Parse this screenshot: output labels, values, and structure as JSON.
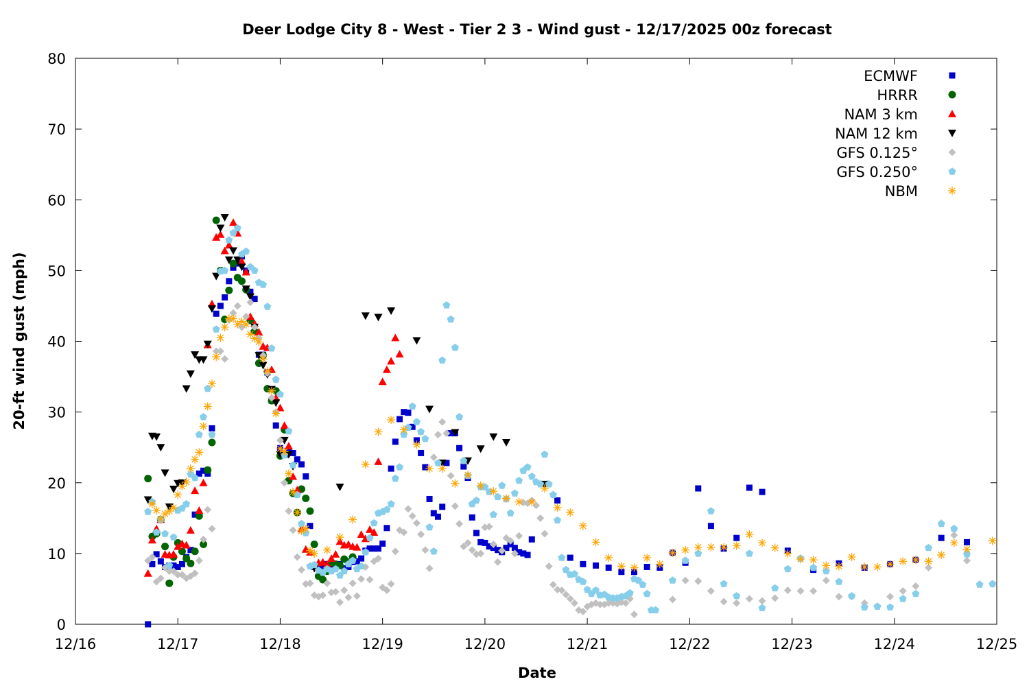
{
  "chart_data": {
    "type": "scatter",
    "title": "Deer Lodge City 8 - West - Tier 2 3 - Wind gust - 12/17/2025 00z forecast",
    "xlabel": "Date",
    "ylabel": "20-ft wind gust (mph)",
    "x_units": "hours since 12/16 00z",
    "xlim": [
      0,
      216
    ],
    "ylim": [
      0,
      80
    ],
    "x_ticks": [
      {
        "hour": 0,
        "label": "12/16"
      },
      {
        "hour": 24,
        "label": "12/17"
      },
      {
        "hour": 48,
        "label": "12/18"
      },
      {
        "hour": 72,
        "label": "12/19"
      },
      {
        "hour": 96,
        "label": "12/20"
      },
      {
        "hour": 120,
        "label": "12/21"
      },
      {
        "hour": 144,
        "label": "12/22"
      },
      {
        "hour": 168,
        "label": "12/23"
      },
      {
        "hour": 192,
        "label": "12/24"
      },
      {
        "hour": 216,
        "label": "12/25"
      }
    ],
    "y_ticks": [
      "0",
      "10",
      "20",
      "30",
      "40",
      "50",
      "60",
      "70",
      "80"
    ],
    "grid": false,
    "legend_position": "top-right",
    "series": [
      {
        "name": "ECMWF",
        "color": "#0000cc",
        "marker": "square",
        "segments": [
          {
            "start": 17,
            "step": 1,
            "values": [
              0,
              8.5,
              9.9,
              8.9,
              8.1,
              8.3,
              8.3,
              8.1,
              8.5,
              9.5,
              10.5,
              15.5,
              21.3,
              21.7,
              21.3,
              27.7,
              43.9,
              45,
              46.2,
              48.5,
              50.4,
              51,
              52,
              50,
              47,
              46,
              38.1,
              38.1,
              35.6,
              31.6,
              28.1,
              24.9,
              23.9,
              24.5,
              24.2,
              23.3,
              22.6,
              20.9,
              13.9,
              8.1,
              8.1,
              8.1,
              8.5,
              8.4,
              8.4,
              8.5,
              7.9,
              8.1,
              8.8,
              8.9,
              9.3,
              10.4,
              10.7,
              10.7,
              10.7,
              11.4,
              13.6,
              22,
              25.8,
              29,
              30,
              29.9,
              27.9,
              26,
              24.2,
              22.2,
              17.7,
              15.7,
              15.2,
              16.6,
              22.8,
              27,
              27,
              24.9,
              22.3,
              20.7,
              15.1,
              12.9,
              11.6,
              11.5,
              11,
              10.8,
              10.5,
              10.2,
              10.8,
              11.3,
              10.8,
              10.2,
              10,
              9.8,
              12
            ]
          },
          {
            "start": 110,
            "step": 3,
            "values": [
              19.8,
              17.5,
              9.4,
              8.5,
              8.3,
              8,
              7.4,
              7.4,
              8.1,
              8,
              10.1,
              8.7,
              19.2,
              13.9,
              10.7,
              12.2,
              19.3,
              18.7
            ]
          },
          {
            "start": 167,
            "step": 6,
            "values": [
              10.4,
              7.7,
              8.6,
              8,
              8.5,
              9.1,
              12.2,
              11.6
            ]
          }
        ]
      },
      {
        "name": "HRRR",
        "color": "#006400",
        "marker": "circle",
        "segments": [
          {
            "start": 17,
            "step": 1,
            "values": [
              20.6,
              12.4,
              12.8,
              14.8,
              11,
              5.8,
              9.5,
              11.5,
              10.3,
              9.3,
              8.6,
              10.3,
              15.3,
              11.3,
              21.8,
              25.7,
              57.1,
              50,
              43.1,
              47.2,
              51,
              49,
              48.5,
              47.3,
              43,
              41.4,
              36.9,
              38,
              33.3,
              31.6,
              33,
              23.8,
              27.5,
              20.3,
              18.5,
              15.8,
              19.1,
              17.8,
              16,
              11.3,
              6.8,
              6.3,
              7.5,
              8.7,
              8.5,
              8.3,
              9.2,
              8.8,
              9.5
            ]
          }
        ]
      },
      {
        "name": "NAM 3 km",
        "color": "#ff0000",
        "marker": "triangle-up",
        "segments": [
          {
            "start": 17,
            "step": 1,
            "values": [
              7.2,
              11.9,
              13.5,
              14.8,
              9.9,
              9.8,
              9.9,
              11,
              11.4,
              11.2,
              13.3,
              18.9,
              16.1,
              20,
              39.5,
              45.3,
              54.7,
              55.1,
              52.8,
              53.6,
              56.8,
              55.3,
              51.3,
              49.8,
              43.5,
              42.5,
              41.3,
              39.3,
              39.1,
              36,
              32,
              30.6,
              28.1,
              25.2,
              20.9,
              19,
              13.5,
              10.6,
              10.2,
              8.3,
              8.7,
              8.8,
              8.5,
              9.3,
              9.9,
              11.7,
              11.2,
              11.3,
              11,
              10.9,
              12.7,
              12.1,
              13.4,
              13,
              23,
              34.3,
              36,
              37.2,
              40.5,
              38.2
            ]
          }
        ]
      },
      {
        "name": "NAM 12 km",
        "color": "#000000",
        "marker": "triangle-down",
        "segments": [
          {
            "start": 17,
            "step": 1,
            "values": [
              17.6,
              26.6,
              26.5,
              25,
              21.4,
              16.6,
              19.1,
              19.9,
              20,
              33.3,
              35.4,
              38.1,
              37.4,
              37.4,
              39.6,
              44.6,
              49.2,
              56,
              57.5,
              51.5,
              52.8,
              51.5,
              50.5,
              47.4,
              46.3,
              42,
              38,
              36.6,
              35.3,
              33.2,
              31.3,
              24,
              26,
              24,
              22.3,
              null,
              null,
              null,
              null,
              7.9
            ]
          },
          {
            "start": 62,
            "step": 3,
            "values": [
              19.4,
              null,
              43.6,
              43.4,
              44.3,
              null,
              40.1,
              30.4,
              22.8,
              27.1,
              23.1,
              24.8,
              26.5,
              25.7,
              null,
              null,
              19.8
            ]
          }
        ]
      },
      {
        "name": "GFS 0.125°",
        "color": "#c0c0c0",
        "marker": "diamond",
        "segments": [
          {
            "start": 17,
            "step": 1,
            "values": [
              9,
              9.5,
              6,
              6.5,
              8,
              7.5,
              7.5,
              7,
              7,
              6.5,
              6.8,
              7.2,
              9,
              12,
              16.2,
              13.5,
              38.6,
              38.6,
              37.5,
              43,
              44,
              45,
              42,
              43.5,
              45.5,
              42,
              40.5,
              38,
              35.5,
              32,
              30,
              26,
              20,
              16,
              13.3,
              9.5,
              7.7,
              5.7,
              5.8,
              4.1,
              3.9,
              4.1,
              5.8,
              4.5,
              4.6,
              3.1,
              4.8,
              3.8,
              5.8,
              4,
              6.4,
              8.1,
              6.3,
              8.9,
              9.3,
              5.2,
              4.8,
              5.7,
              10.3,
              13.3,
              13,
              16.3,
              15.3,
              14.3,
              12.7,
              10.5,
              7.9,
              23.6,
              26.8,
              28.6,
              27,
              21,
              16.7,
              14.2,
              11,
              11.5,
              10.5,
              9.9,
              10,
              13.7,
              13.8,
              11.3,
              8.8,
              10.4,
              12.2,
              11.8,
              10,
              12.5,
              17.2,
              17.1,
              17.5,
              16.8,
              15,
              12.8,
              8.2,
              5.6,
              4.9,
              4.8,
              4.2,
              3.6,
              3,
              2,
              1.8,
              2.5,
              2.8,
              3,
              2.8,
              2.8,
              3,
              3,
              2.9,
              3.1,
              3,
              3.6,
              1.4
            ]
          },
          {
            "start": 140,
            "step": 3,
            "values": [
              3.5,
              6.2,
              6.1,
              4.7,
              3.2,
              3,
              3.6,
              3.3,
              3.7,
              4.8,
              4.7,
              4.7,
              6.2,
              3.9,
              3.9,
              3,
              2.5,
              3.9,
              4.7,
              5.4,
              8,
              14.3,
              12.6,
              9,
              5.7,
              5.7
            ]
          }
        ]
      },
      {
        "name": "GFS 0.250°",
        "color": "#87ceeb",
        "marker": "pentagon",
        "segments": [
          {
            "start": 17,
            "step": 1,
            "values": [
              15.9,
              17.3,
              13,
              14.8,
              12.8,
              8.3,
              12.3,
              16.1,
              16.4,
              17,
              21.2,
              20.7,
              26.8,
              29.3,
              33.3,
              26.8,
              41.7,
              49.9,
              50,
              54.3,
              55.3,
              56,
              52.3,
              52.7,
              50.5,
              50,
              48.3,
              48,
              44.9,
              39,
              34.6,
              32.5,
              23.9,
              27.3,
              22.5,
              18.3,
              14.2,
              12.9,
              8.2,
              8.4,
              7.6,
              7.3,
              7.8,
              7.5,
              7.8,
              6.9,
              7.5,
              8.5,
              9,
              7.8,
              8.2,
              10.2,
              12.2,
              14.3,
              15.7,
              15.9,
              16.2,
              17,
              20.6,
              22.2,
              26.8,
              27.8,
              30.8,
              28.6,
              27.2,
              26.2,
              13.7,
              10.3,
              22.8,
              37.3,
              45.1,
              43.1,
              39.1,
              29.3,
              23.1,
              21,
              17,
              17.5,
              19.4,
              19.4,
              18.7,
              15.5,
              18,
              19.6,
              17.7,
              15.7,
              18.5,
              20.3,
              21.7,
              22.2,
              20.9,
              20.1,
              19.8,
              24,
              19.8,
              18.3,
              14.7,
              9.4,
              7.7,
              7,
              7.1,
              6.3,
              6,
              4.9,
              4.3,
              4.8,
              4.1,
              4.2,
              3.8,
              3.7,
              3.7,
              3.9,
              4,
              4.4,
              6.4,
              6.2,
              5.6,
              4.3,
              2,
              2
            ]
          },
          {
            "start": 140,
            "step": 3,
            "values": [
              6.2,
              9,
              10,
              16,
              5.7,
              4,
              10,
              2.3,
              5.1,
              7.8,
              9.3,
              8,
              7.5,
              6,
              4,
              2.4,
              2.5,
              2.4,
              3.6,
              4.3,
              10.8,
              14.2,
              13.5,
              9.9,
              5.6,
              5.7
            ]
          }
        ]
      },
      {
        "name": "NBM",
        "color": "#ffa500",
        "marker": "asterisk",
        "segments": [
          {
            "start": 18,
            "step": 1,
            "values": [
              17,
              16.1,
              14.9,
              15.6,
              16,
              16.5,
              18.3,
              19.5,
              20.1,
              22,
              23.3,
              24.3,
              28,
              30.8,
              34,
              37.8,
              40.5,
              42,
              43.2,
              43.2,
              42.4,
              42.8,
              42.4,
              41,
              40.4,
              39.9,
              37.5,
              35.8,
              33,
              29.8,
              24.8,
              24.4,
              21.3,
              18.7,
              15.8,
              13.2,
              13.5,
              10.4,
              10
            ]
          },
          {
            "start": 59,
            "step": 3,
            "values": [
              10.5,
              12.3,
              14.8,
              22.6,
              27.2,
              28.9,
              27.5,
              25.4,
              22,
              22,
              19.9,
              21.1,
              19.6,
              18.8,
              17.8,
              17.3,
              17.3,
              19.2,
              16.5,
              15.8,
              13.9,
              11.6,
              9.4,
              8.2,
              8,
              9.4,
              8.5,
              10.1,
              10.5,
              10.9,
              10.9,
              10.9,
              11.1,
              12.7,
              11.5,
              10.8,
              10,
              9.2,
              9.1,
              8.3,
              8.2,
              9.5,
              8.1,
              8.1,
              8.5,
              8.9,
              9.1,
              8.9,
              9.8,
              11.5,
              10.6,
              null,
              11.8
            ]
          }
        ]
      }
    ]
  }
}
